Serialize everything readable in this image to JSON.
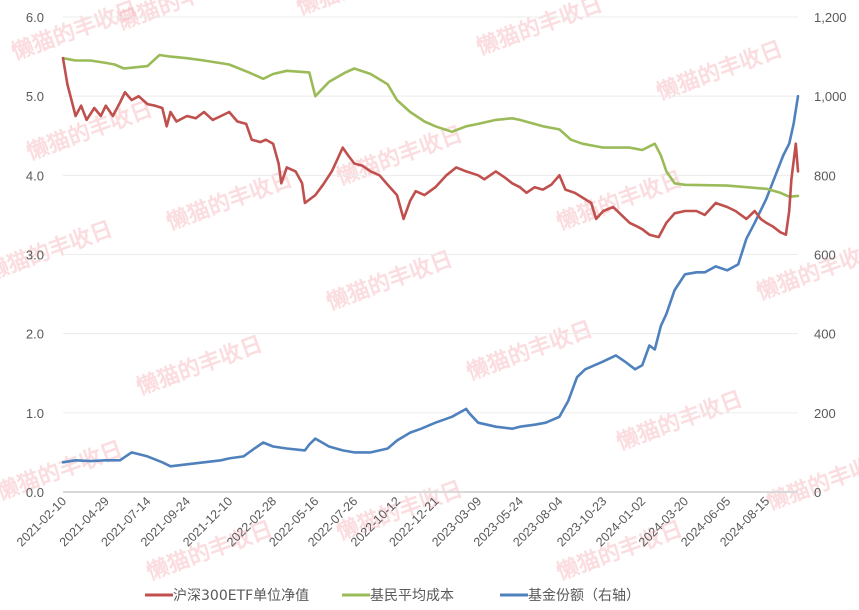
{
  "chart_data": {
    "type": "line",
    "title": "",
    "x_dates": [
      "2021-02-10",
      "2021-04-29",
      "2021-07-14",
      "2021-09-24",
      "2021-12-10",
      "2022-02-28",
      "2022-05-16",
      "2022-07-26",
      "2022-10-12",
      "2022-12-21",
      "2023-03-09",
      "2023-05-24",
      "2023-08-04",
      "2023-10-23",
      "2024-01-02",
      "2024-03-20",
      "2024-06-05",
      "2024-08-15"
    ],
    "x_start": "2021-02-10",
    "x_end": "2024-10-12",
    "y_left": {
      "min": 0,
      "max": 6.0,
      "ticks": [
        "0.0",
        "1.0",
        "2.0",
        "3.0",
        "4.0",
        "5.0",
        "6.0"
      ]
    },
    "y_right": {
      "min": 0,
      "max": 1200,
      "ticks": [
        "0",
        "200",
        "400",
        "600",
        "800",
        "1,000",
        "1,200"
      ]
    },
    "legend_position": "bottom",
    "watermark": "懒猫的丰收日",
    "series": [
      {
        "name": "沪深300ETF单位净值",
        "axis": "left",
        "color": "#c0504d",
        "points": [
          [
            "2021-02-10",
            5.48
          ],
          [
            "2021-02-18",
            5.15
          ],
          [
            "2021-03-05",
            4.75
          ],
          [
            "2021-03-15",
            4.88
          ],
          [
            "2021-03-25",
            4.7
          ],
          [
            "2021-04-08",
            4.85
          ],
          [
            "2021-04-20",
            4.75
          ],
          [
            "2021-04-29",
            4.88
          ],
          [
            "2021-05-12",
            4.75
          ],
          [
            "2021-05-25",
            4.92
          ],
          [
            "2021-06-03",
            5.05
          ],
          [
            "2021-06-15",
            4.95
          ],
          [
            "2021-06-28",
            5.0
          ],
          [
            "2021-07-14",
            4.9
          ],
          [
            "2021-07-28",
            4.88
          ],
          [
            "2021-08-10",
            4.85
          ],
          [
            "2021-08-18",
            4.62
          ],
          [
            "2021-08-25",
            4.8
          ],
          [
            "2021-09-05",
            4.68
          ],
          [
            "2021-09-24",
            4.75
          ],
          [
            "2021-10-10",
            4.72
          ],
          [
            "2021-10-25",
            4.8
          ],
          [
            "2021-11-10",
            4.7
          ],
          [
            "2021-11-25",
            4.75
          ],
          [
            "2021-12-10",
            4.8
          ],
          [
            "2021-12-25",
            4.68
          ],
          [
            "2022-01-10",
            4.65
          ],
          [
            "2022-01-20",
            4.45
          ],
          [
            "2022-02-05",
            4.42
          ],
          [
            "2022-02-15",
            4.45
          ],
          [
            "2022-02-28",
            4.4
          ],
          [
            "2022-03-10",
            4.15
          ],
          [
            "2022-03-15",
            3.9
          ],
          [
            "2022-03-25",
            4.1
          ],
          [
            "2022-04-10",
            4.05
          ],
          [
            "2022-04-22",
            3.9
          ],
          [
            "2022-04-27",
            3.65
          ],
          [
            "2022-05-16",
            3.75
          ],
          [
            "2022-05-30",
            3.88
          ],
          [
            "2022-06-15",
            4.05
          ],
          [
            "2022-06-25",
            4.2
          ],
          [
            "2022-07-05",
            4.35
          ],
          [
            "2022-07-15",
            4.25
          ],
          [
            "2022-07-26",
            4.15
          ],
          [
            "2022-08-10",
            4.12
          ],
          [
            "2022-08-25",
            4.05
          ],
          [
            "2022-09-10",
            4.0
          ],
          [
            "2022-09-25",
            3.88
          ],
          [
            "2022-10-12",
            3.75
          ],
          [
            "2022-10-24",
            3.45
          ],
          [
            "2022-11-05",
            3.68
          ],
          [
            "2022-11-15",
            3.8
          ],
          [
            "2022-12-01",
            3.75
          ],
          [
            "2022-12-21",
            3.85
          ],
          [
            "2023-01-10",
            4.0
          ],
          [
            "2023-01-28",
            4.1
          ],
          [
            "2023-02-15",
            4.05
          ],
          [
            "2023-03-09",
            4.0
          ],
          [
            "2023-03-20",
            3.95
          ],
          [
            "2023-04-10",
            4.05
          ],
          [
            "2023-04-25",
            3.98
          ],
          [
            "2023-05-10",
            3.9
          ],
          [
            "2023-05-24",
            3.85
          ],
          [
            "2023-06-05",
            3.78
          ],
          [
            "2023-06-20",
            3.85
          ],
          [
            "2023-07-05",
            3.82
          ],
          [
            "2023-07-20",
            3.88
          ],
          [
            "2023-08-04",
            4.0
          ],
          [
            "2023-08-15",
            3.82
          ],
          [
            "2023-09-01",
            3.78
          ],
          [
            "2023-09-15",
            3.72
          ],
          [
            "2023-10-01",
            3.65
          ],
          [
            "2023-10-10",
            3.45
          ],
          [
            "2023-10-23",
            3.55
          ],
          [
            "2023-11-10",
            3.6
          ],
          [
            "2023-11-25",
            3.5
          ],
          [
            "2023-12-10",
            3.4
          ],
          [
            "2023-12-25",
            3.35
          ],
          [
            "2024-01-02",
            3.32
          ],
          [
            "2024-01-15",
            3.25
          ],
          [
            "2024-02-01",
            3.22
          ],
          [
            "2024-02-15",
            3.4
          ],
          [
            "2024-03-01",
            3.52
          ],
          [
            "2024-03-20",
            3.55
          ],
          [
            "2024-04-10",
            3.55
          ],
          [
            "2024-04-25",
            3.5
          ],
          [
            "2024-05-15",
            3.65
          ],
          [
            "2024-06-05",
            3.6
          ],
          [
            "2024-06-20",
            3.55
          ],
          [
            "2024-07-10",
            3.45
          ],
          [
            "2024-07-25",
            3.55
          ],
          [
            "2024-08-05",
            3.45
          ],
          [
            "2024-08-15",
            3.4
          ],
          [
            "2024-08-28",
            3.35
          ],
          [
            "2024-09-10",
            3.28
          ],
          [
            "2024-09-20",
            3.25
          ],
          [
            "2024-09-26",
            3.55
          ],
          [
            "2024-09-30",
            3.95
          ],
          [
            "2024-10-08",
            4.4
          ],
          [
            "2024-10-12",
            4.05
          ]
        ]
      },
      {
        "name": "基民平均成本",
        "axis": "left",
        "color": "#9bbb59",
        "points": [
          [
            "2021-02-10",
            5.48
          ],
          [
            "2021-03-05",
            5.45
          ],
          [
            "2021-04-01",
            5.45
          ],
          [
            "2021-04-29",
            5.42
          ],
          [
            "2021-05-15",
            5.4
          ],
          [
            "2021-06-01",
            5.35
          ],
          [
            "2021-07-14",
            5.38
          ],
          [
            "2021-08-05",
            5.52
          ],
          [
            "2021-08-25",
            5.5
          ],
          [
            "2021-09-24",
            5.48
          ],
          [
            "2021-10-25",
            5.45
          ],
          [
            "2021-12-10",
            5.4
          ],
          [
            "2022-01-15",
            5.3
          ],
          [
            "2022-02-10",
            5.22
          ],
          [
            "2022-02-28",
            5.28
          ],
          [
            "2022-03-25",
            5.32
          ],
          [
            "2022-05-05",
            5.3
          ],
          [
            "2022-05-16",
            5.0
          ],
          [
            "2022-06-10",
            5.18
          ],
          [
            "2022-07-10",
            5.3
          ],
          [
            "2022-07-26",
            5.35
          ],
          [
            "2022-08-25",
            5.28
          ],
          [
            "2022-09-25",
            5.15
          ],
          [
            "2022-10-12",
            4.95
          ],
          [
            "2022-11-05",
            4.8
          ],
          [
            "2022-12-01",
            4.68
          ],
          [
            "2022-12-21",
            4.62
          ],
          [
            "2023-01-20",
            4.55
          ],
          [
            "2023-02-15",
            4.62
          ],
          [
            "2023-03-09",
            4.65
          ],
          [
            "2023-04-10",
            4.7
          ],
          [
            "2023-05-10",
            4.72
          ],
          [
            "2023-05-24",
            4.7
          ],
          [
            "2023-07-05",
            4.62
          ],
          [
            "2023-08-04",
            4.58
          ],
          [
            "2023-08-25",
            4.45
          ],
          [
            "2023-09-15",
            4.4
          ],
          [
            "2023-10-23",
            4.35
          ],
          [
            "2023-12-10",
            4.35
          ],
          [
            "2024-01-02",
            4.32
          ],
          [
            "2024-01-25",
            4.4
          ],
          [
            "2024-02-05",
            4.25
          ],
          [
            "2024-02-15",
            4.05
          ],
          [
            "2024-03-01",
            3.9
          ],
          [
            "2024-03-20",
            3.88
          ],
          [
            "2024-06-05",
            3.87
          ],
          [
            "2024-08-15",
            3.83
          ],
          [
            "2024-09-10",
            3.78
          ],
          [
            "2024-09-26",
            3.73
          ],
          [
            "2024-10-12",
            3.74
          ]
        ]
      },
      {
        "name": "基金份额（右轴）",
        "axis": "right",
        "color": "#4f81bd",
        "points": [
          [
            "2021-02-10",
            75
          ],
          [
            "2021-03-05",
            80
          ],
          [
            "2021-04-01",
            78
          ],
          [
            "2021-04-29",
            80
          ],
          [
            "2021-05-25",
            80
          ],
          [
            "2021-06-15",
            100
          ],
          [
            "2021-07-14",
            90
          ],
          [
            "2021-08-10",
            75
          ],
          [
            "2021-08-25",
            65
          ],
          [
            "2021-09-24",
            70
          ],
          [
            "2021-10-25",
            75
          ],
          [
            "2021-11-25",
            80
          ],
          [
            "2021-12-10",
            85
          ],
          [
            "2022-01-05",
            90
          ],
          [
            "2022-01-25",
            110
          ],
          [
            "2022-02-10",
            125
          ],
          [
            "2022-02-28",
            115
          ],
          [
            "2022-03-25",
            110
          ],
          [
            "2022-04-27",
            105
          ],
          [
            "2022-05-05",
            120
          ],
          [
            "2022-05-16",
            135
          ],
          [
            "2022-06-10",
            115
          ],
          [
            "2022-07-05",
            105
          ],
          [
            "2022-07-26",
            100
          ],
          [
            "2022-08-25",
            100
          ],
          [
            "2022-09-25",
            110
          ],
          [
            "2022-10-12",
            130
          ],
          [
            "2022-11-05",
            150
          ],
          [
            "2022-11-25",
            160
          ],
          [
            "2022-12-21",
            175
          ],
          [
            "2023-01-20",
            190
          ],
          [
            "2023-02-15",
            210
          ],
          [
            "2023-02-20",
            200
          ],
          [
            "2023-03-09",
            175
          ],
          [
            "2023-04-10",
            165
          ],
          [
            "2023-05-10",
            160
          ],
          [
            "2023-05-24",
            165
          ],
          [
            "2023-06-20",
            170
          ],
          [
            "2023-07-10",
            175
          ],
          [
            "2023-08-04",
            190
          ],
          [
            "2023-08-20",
            230
          ],
          [
            "2023-09-05",
            290
          ],
          [
            "2023-09-20",
            310
          ],
          [
            "2023-10-23",
            330
          ],
          [
            "2023-11-15",
            345
          ],
          [
            "2023-12-01",
            330
          ],
          [
            "2023-12-20",
            310
          ],
          [
            "2024-01-02",
            320
          ],
          [
            "2024-01-15",
            370
          ],
          [
            "2024-01-25",
            360
          ],
          [
            "2024-02-05",
            420
          ],
          [
            "2024-02-15",
            450
          ],
          [
            "2024-03-01",
            510
          ],
          [
            "2024-03-20",
            550
          ],
          [
            "2024-04-10",
            555
          ],
          [
            "2024-04-25",
            555
          ],
          [
            "2024-05-15",
            570
          ],
          [
            "2024-06-05",
            560
          ],
          [
            "2024-06-25",
            575
          ],
          [
            "2024-07-10",
            640
          ],
          [
            "2024-07-25",
            680
          ],
          [
            "2024-08-15",
            740
          ],
          [
            "2024-09-01",
            800
          ],
          [
            "2024-09-15",
            850
          ],
          [
            "2024-09-26",
            880
          ],
          [
            "2024-10-04",
            930
          ],
          [
            "2024-10-12",
            1000
          ]
        ]
      }
    ]
  }
}
